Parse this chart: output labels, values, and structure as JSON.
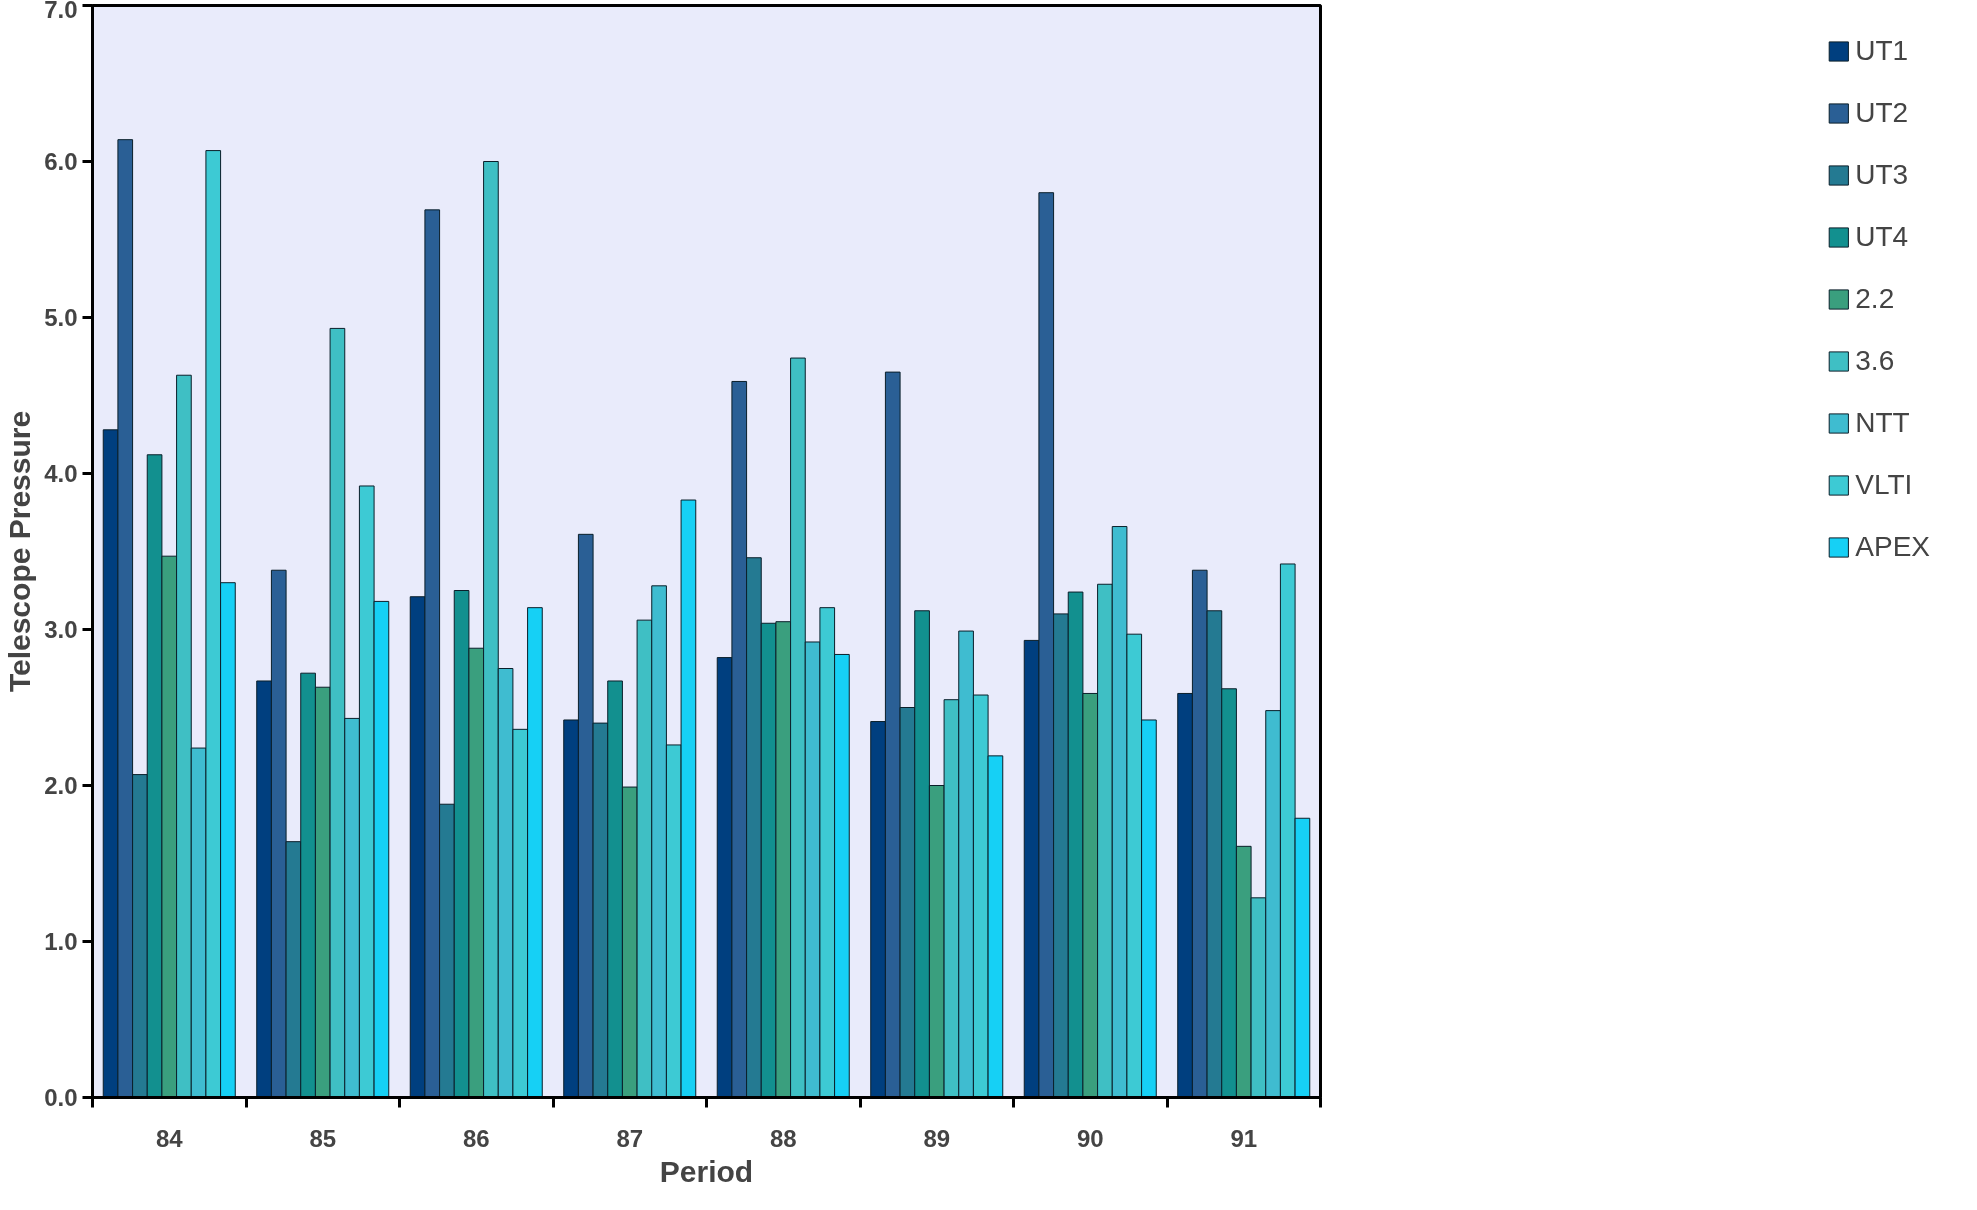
{
  "chart_data": {
    "type": "bar",
    "xlabel": "Period",
    "ylabel": "Telescope Pressure",
    "categories": [
      "84",
      "85",
      "86",
      "87",
      "88",
      "89",
      "90",
      "91"
    ],
    "ylim": [
      0,
      7
    ],
    "yticks": [
      {
        "value": 0,
        "label": "0.0"
      },
      {
        "value": 1,
        "label": "1.0"
      },
      {
        "value": 2,
        "label": "2.0"
      },
      {
        "value": 3,
        "label": "3.0"
      },
      {
        "value": 4,
        "label": "4.0"
      },
      {
        "value": 5,
        "label": "5.0"
      },
      {
        "value": 6,
        "label": "6.0"
      },
      {
        "value": 7,
        "label": "7.0"
      }
    ],
    "grid": false,
    "legend": "right",
    "series": [
      {
        "name": "UT1",
        "color": "#003f7f",
        "values": [
          4.28,
          2.67,
          3.21,
          2.42,
          2.82,
          2.41,
          2.93,
          2.59
        ]
      },
      {
        "name": "UT2",
        "color": "#2a5f95",
        "values": [
          6.14,
          3.38,
          5.69,
          3.61,
          4.59,
          4.65,
          5.8,
          3.38
        ]
      },
      {
        "name": "UT3",
        "color": "#247a92",
        "values": [
          2.07,
          1.64,
          1.88,
          2.4,
          3.46,
          2.5,
          3.1,
          3.12
        ]
      },
      {
        "name": "UT4",
        "color": "#12908f",
        "values": [
          4.12,
          2.72,
          3.25,
          2.67,
          3.04,
          3.12,
          3.24,
          2.62
        ]
      },
      {
        "name": "2.2",
        "color": "#3a9f7e",
        "values": [
          3.47,
          2.63,
          2.88,
          1.99,
          3.05,
          2.0,
          2.59,
          1.61
        ]
      },
      {
        "name": "3.6",
        "color": "#3fbfc4",
        "values": [
          4.63,
          4.93,
          6.0,
          3.06,
          4.74,
          2.55,
          3.29,
          1.28
        ]
      },
      {
        "name": "NTT",
        "color": "#3fbcd0",
        "values": [
          2.24,
          2.43,
          2.75,
          3.28,
          2.92,
          2.99,
          3.66,
          2.48
        ]
      },
      {
        "name": "VLTI",
        "color": "#3dcad4",
        "values": [
          6.07,
          3.92,
          2.36,
          2.26,
          3.14,
          2.58,
          2.97,
          3.42
        ]
      },
      {
        "name": "APEX",
        "color": "#16d0f5",
        "values": [
          3.3,
          3.18,
          3.14,
          3.83,
          2.84,
          2.19,
          2.42,
          1.79
        ]
      }
    ]
  }
}
